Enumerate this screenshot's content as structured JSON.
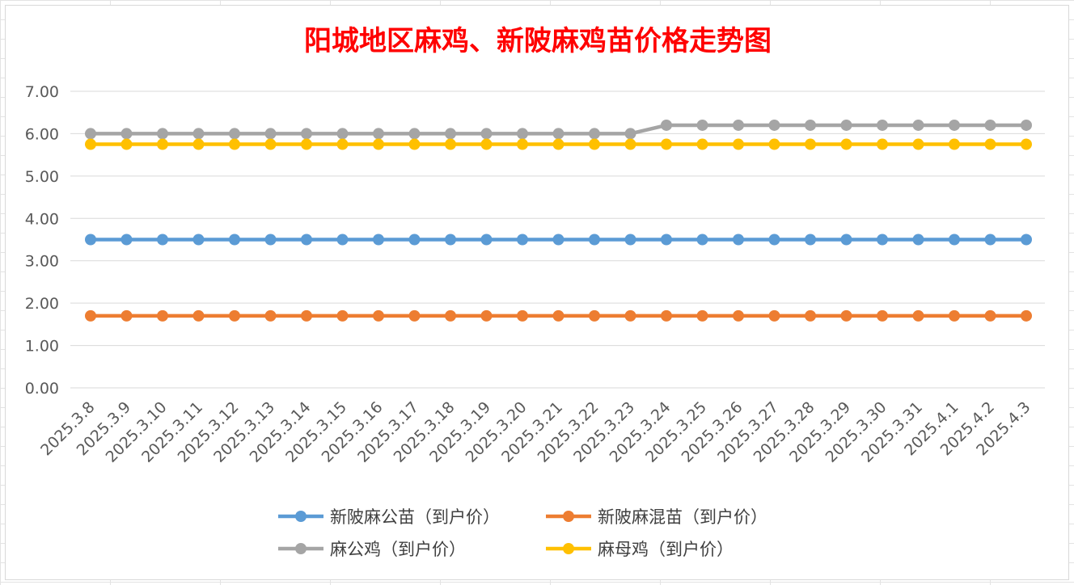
{
  "chart_data": {
    "type": "line",
    "title": "阳城地区麻鸡、新陂麻鸡苗价格走势图",
    "xlabel": "",
    "ylabel": "",
    "categories": [
      "2025.3.8",
      "2025.3.9",
      "2025.3.10",
      "2025.3.11",
      "2025.3.12",
      "2025.3.13",
      "2025.3.14",
      "2025.3.15",
      "2025.3.16",
      "2025.3.17",
      "2025.3.18",
      "2025.3.19",
      "2025.3.20",
      "2025.3.21",
      "2025.3.22",
      "2025.3.23",
      "2025.3.24",
      "2025.3.25",
      "2025.3.26",
      "2025.3.27",
      "2025.3.28",
      "2025.3.29",
      "2025.3.30",
      "2025.3.31",
      "2025.4.1",
      "2025.4.2",
      "2025.4.3"
    ],
    "yticks": [
      "0.00",
      "1.00",
      "2.00",
      "3.00",
      "4.00",
      "5.00",
      "6.00",
      "7.00"
    ],
    "ylim": [
      0,
      7
    ],
    "grid": "horizontal",
    "legend_position": "bottom",
    "series": [
      {
        "name": "新陂麻公苗（到户价）",
        "color": "#5b9bd5",
        "values": [
          3.5,
          3.5,
          3.5,
          3.5,
          3.5,
          3.5,
          3.5,
          3.5,
          3.5,
          3.5,
          3.5,
          3.5,
          3.5,
          3.5,
          3.5,
          3.5,
          3.5,
          3.5,
          3.5,
          3.5,
          3.5,
          3.5,
          3.5,
          3.5,
          3.5,
          3.5,
          3.5
        ]
      },
      {
        "name": "新陂麻混苗（到户价）",
        "color": "#ed7d31",
        "values": [
          1.7,
          1.7,
          1.7,
          1.7,
          1.7,
          1.7,
          1.7,
          1.7,
          1.7,
          1.7,
          1.7,
          1.7,
          1.7,
          1.7,
          1.7,
          1.7,
          1.7,
          1.7,
          1.7,
          1.7,
          1.7,
          1.7,
          1.7,
          1.7,
          1.7,
          1.7,
          1.7
        ]
      },
      {
        "name": "麻公鸡（到户价）",
        "color": "#a5a5a5",
        "values": [
          6.0,
          6.0,
          6.0,
          6.0,
          6.0,
          6.0,
          6.0,
          6.0,
          6.0,
          6.0,
          6.0,
          6.0,
          6.0,
          6.0,
          6.0,
          6.0,
          6.2,
          6.2,
          6.2,
          6.2,
          6.2,
          6.2,
          6.2,
          6.2,
          6.2,
          6.2,
          6.2
        ]
      },
      {
        "name": "麻母鸡（到户价）",
        "color": "#ffc000",
        "values": [
          5.75,
          5.75,
          5.75,
          5.75,
          5.75,
          5.75,
          5.75,
          5.75,
          5.75,
          5.75,
          5.75,
          5.75,
          5.75,
          5.75,
          5.75,
          5.75,
          5.75,
          5.75,
          5.75,
          5.75,
          5.75,
          5.75,
          5.75,
          5.75,
          5.75,
          5.75,
          5.75
        ]
      }
    ]
  }
}
